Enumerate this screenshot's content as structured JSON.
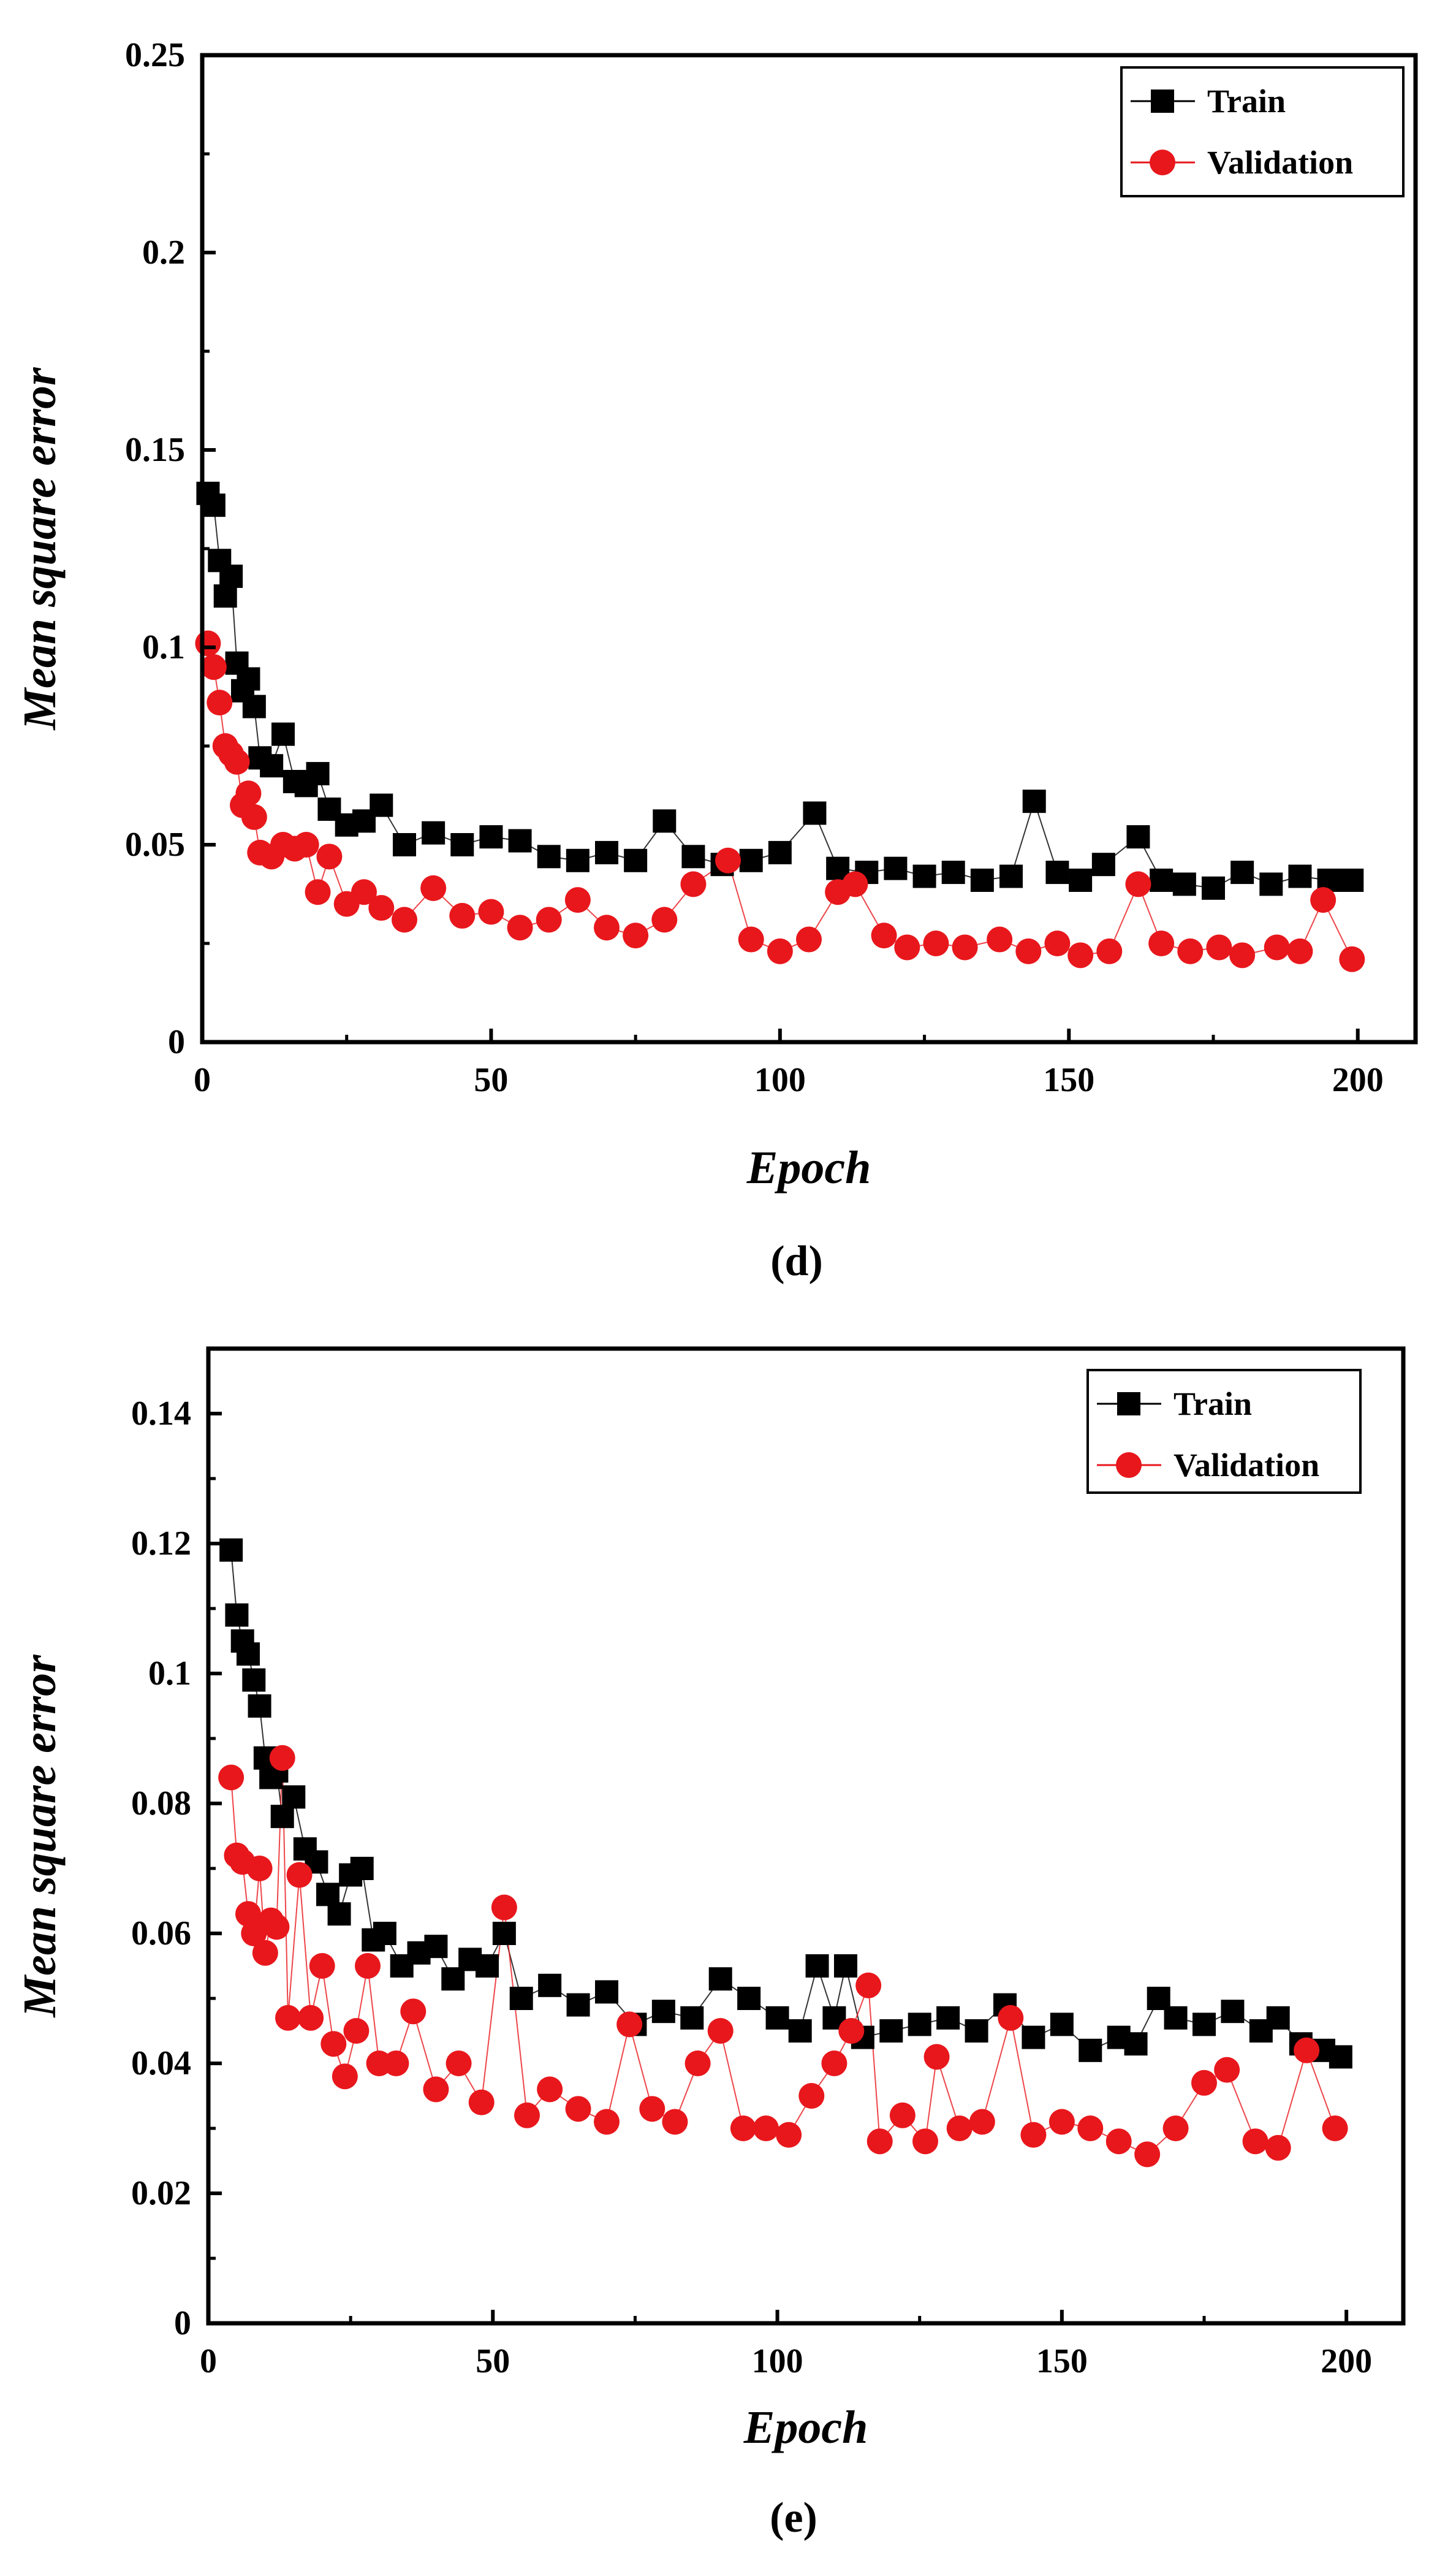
{
  "chart_data": [
    {
      "type": "scatter",
      "panel_label": "(d)",
      "xlabel": "Epoch",
      "ylabel": "Mean square error",
      "xlim": [
        0,
        210
      ],
      "ylim": [
        0,
        0.25
      ],
      "xticks": [
        0,
        50,
        100,
        150,
        200
      ],
      "xtick_labels": [
        "0",
        "50",
        "100",
        "150",
        "200"
      ],
      "yticks": [
        0,
        0.05,
        0.1,
        0.15,
        0.2,
        0.25
      ],
      "ytick_labels": [
        "0",
        "0.05",
        "0.1",
        "0.15",
        "0.2",
        "0.25"
      ],
      "legend_position": "top-right",
      "series": [
        {
          "name": "Train",
          "marker": "square",
          "color": "#000000",
          "x": [
            1,
            2,
            3,
            4,
            5,
            6,
            7,
            8,
            9,
            10,
            12,
            14,
            16,
            18,
            20,
            22,
            25,
            28,
            31,
            35,
            40,
            45,
            50,
            55,
            60,
            65,
            70,
            75,
            80,
            85,
            90,
            95,
            100,
            106,
            110,
            115,
            120,
            125,
            130,
            135,
            140,
            144,
            148,
            152,
            156,
            162,
            166,
            170,
            175,
            180,
            185,
            190,
            195,
            199
          ],
          "values": [
            0.139,
            0.136,
            0.122,
            0.113,
            0.118,
            0.096,
            0.089,
            0.092,
            0.085,
            0.072,
            0.07,
            0.078,
            0.066,
            0.065,
            0.068,
            0.059,
            0.055,
            0.056,
            0.06,
            0.05,
            0.053,
            0.05,
            0.052,
            0.051,
            0.047,
            0.046,
            0.048,
            0.046,
            0.056,
            0.047,
            0.045,
            0.046,
            0.048,
            0.058,
            0.044,
            0.043,
            0.044,
            0.042,
            0.043,
            0.041,
            0.042,
            0.061,
            0.043,
            0.041,
            0.045,
            0.052,
            0.041,
            0.04,
            0.039,
            0.043,
            0.04,
            0.042,
            0.041,
            0.041
          ]
        },
        {
          "name": "Validation",
          "marker": "circle",
          "color": "#e8171c",
          "x": [
            1,
            2,
            3,
            4,
            5,
            6,
            7,
            8,
            9,
            10,
            12,
            14,
            16,
            18,
            20,
            22,
            25,
            28,
            31,
            35,
            40,
            45,
            50,
            55,
            60,
            65,
            70,
            75,
            80,
            85,
            91,
            95,
            100,
            105,
            110,
            113,
            118,
            122,
            127,
            132,
            138,
            143,
            148,
            152,
            157,
            162,
            166,
            171,
            176,
            180,
            186,
            190,
            194,
            199
          ],
          "values": [
            0.101,
            0.095,
            0.086,
            0.075,
            0.073,
            0.071,
            0.06,
            0.063,
            0.057,
            0.048,
            0.047,
            0.05,
            0.049,
            0.05,
            0.038,
            0.047,
            0.035,
            0.038,
            0.034,
            0.031,
            0.039,
            0.032,
            0.033,
            0.029,
            0.031,
            0.036,
            0.029,
            0.027,
            0.031,
            0.04,
            0.046,
            0.026,
            0.023,
            0.026,
            0.038,
            0.04,
            0.027,
            0.024,
            0.025,
            0.024,
            0.026,
            0.023,
            0.025,
            0.022,
            0.023,
            0.04,
            0.025,
            0.023,
            0.024,
            0.022,
            0.024,
            0.023,
            0.036,
            0.021
          ]
        }
      ]
    },
    {
      "type": "scatter",
      "panel_label": "(e)",
      "xlabel": "Epoch",
      "ylabel": "Mean square error",
      "xlim": [
        0,
        210
      ],
      "ylim": [
        0,
        0.15
      ],
      "xticks": [
        0,
        50,
        100,
        150,
        200
      ],
      "xtick_labels": [
        "0",
        "50",
        "100",
        "150",
        "200"
      ],
      "yticks": [
        0,
        0.02,
        0.04,
        0.06,
        0.08,
        0.1,
        0.12,
        0.14
      ],
      "ytick_labels": [
        "0",
        "0.02",
        "0.04",
        "0.06",
        "0.08",
        "0.1",
        "0.12",
        "0.14"
      ],
      "legend_position": "top-right",
      "series": [
        {
          "name": "Train",
          "marker": "square",
          "color": "#000000",
          "x": [
            4,
            5,
            6,
            7,
            8,
            9,
            10,
            11,
            12,
            13,
            15,
            17,
            19,
            21,
            23,
            25,
            27,
            29,
            31,
            34,
            37,
            40,
            43,
            46,
            49,
            52,
            55,
            60,
            65,
            70,
            75,
            80,
            85,
            90,
            95,
            100,
            104,
            107,
            110,
            112,
            115,
            120,
            125,
            130,
            135,
            140,
            145,
            150,
            155,
            160,
            163,
            167,
            170,
            175,
            180,
            185,
            188,
            192,
            196,
            199
          ],
          "values": [
            0.119,
            0.109,
            0.105,
            0.103,
            0.099,
            0.095,
            0.087,
            0.084,
            0.085,
            0.078,
            0.081,
            0.073,
            0.071,
            0.066,
            0.063,
            0.069,
            0.07,
            0.059,
            0.06,
            0.055,
            0.057,
            0.058,
            0.053,
            0.056,
            0.055,
            0.06,
            0.05,
            0.052,
            0.049,
            0.051,
            0.046,
            0.048,
            0.047,
            0.053,
            0.05,
            0.047,
            0.045,
            0.055,
            0.047,
            0.055,
            0.044,
            0.045,
            0.046,
            0.047,
            0.045,
            0.049,
            0.044,
            0.046,
            0.042,
            0.044,
            0.043,
            0.05,
            0.047,
            0.046,
            0.048,
            0.045,
            0.047,
            0.043,
            0.042,
            0.041
          ]
        },
        {
          "name": "Validation",
          "marker": "circle",
          "color": "#e8171c",
          "x": [
            4,
            5,
            6,
            7,
            8,
            9,
            10,
            11,
            12,
            13,
            14,
            16,
            18,
            20,
            22,
            24,
            26,
            28,
            30,
            33,
            36,
            40,
            44,
            48,
            52,
            56,
            60,
            65,
            70,
            74,
            78,
            82,
            86,
            90,
            94,
            98,
            102,
            106,
            110,
            113,
            116,
            118,
            122,
            126,
            128,
            132,
            136,
            141,
            145,
            150,
            155,
            160,
            165,
            170,
            175,
            179,
            184,
            188,
            193,
            198
          ],
          "values": [
            0.084,
            0.072,
            0.071,
            0.063,
            0.06,
            0.07,
            0.057,
            0.062,
            0.061,
            0.087,
            0.047,
            0.069,
            0.047,
            0.055,
            0.043,
            0.038,
            0.045,
            0.055,
            0.04,
            0.04,
            0.048,
            0.036,
            0.04,
            0.034,
            0.064,
            0.032,
            0.036,
            0.033,
            0.031,
            0.046,
            0.033,
            0.031,
            0.04,
            0.045,
            0.03,
            0.03,
            0.029,
            0.035,
            0.04,
            0.045,
            0.052,
            0.028,
            0.032,
            0.028,
            0.041,
            0.03,
            0.031,
            0.047,
            0.029,
            0.031,
            0.03,
            0.028,
            0.026,
            0.03,
            0.037,
            0.039,
            0.028,
            0.027,
            0.042,
            0.03
          ]
        }
      ]
    }
  ]
}
